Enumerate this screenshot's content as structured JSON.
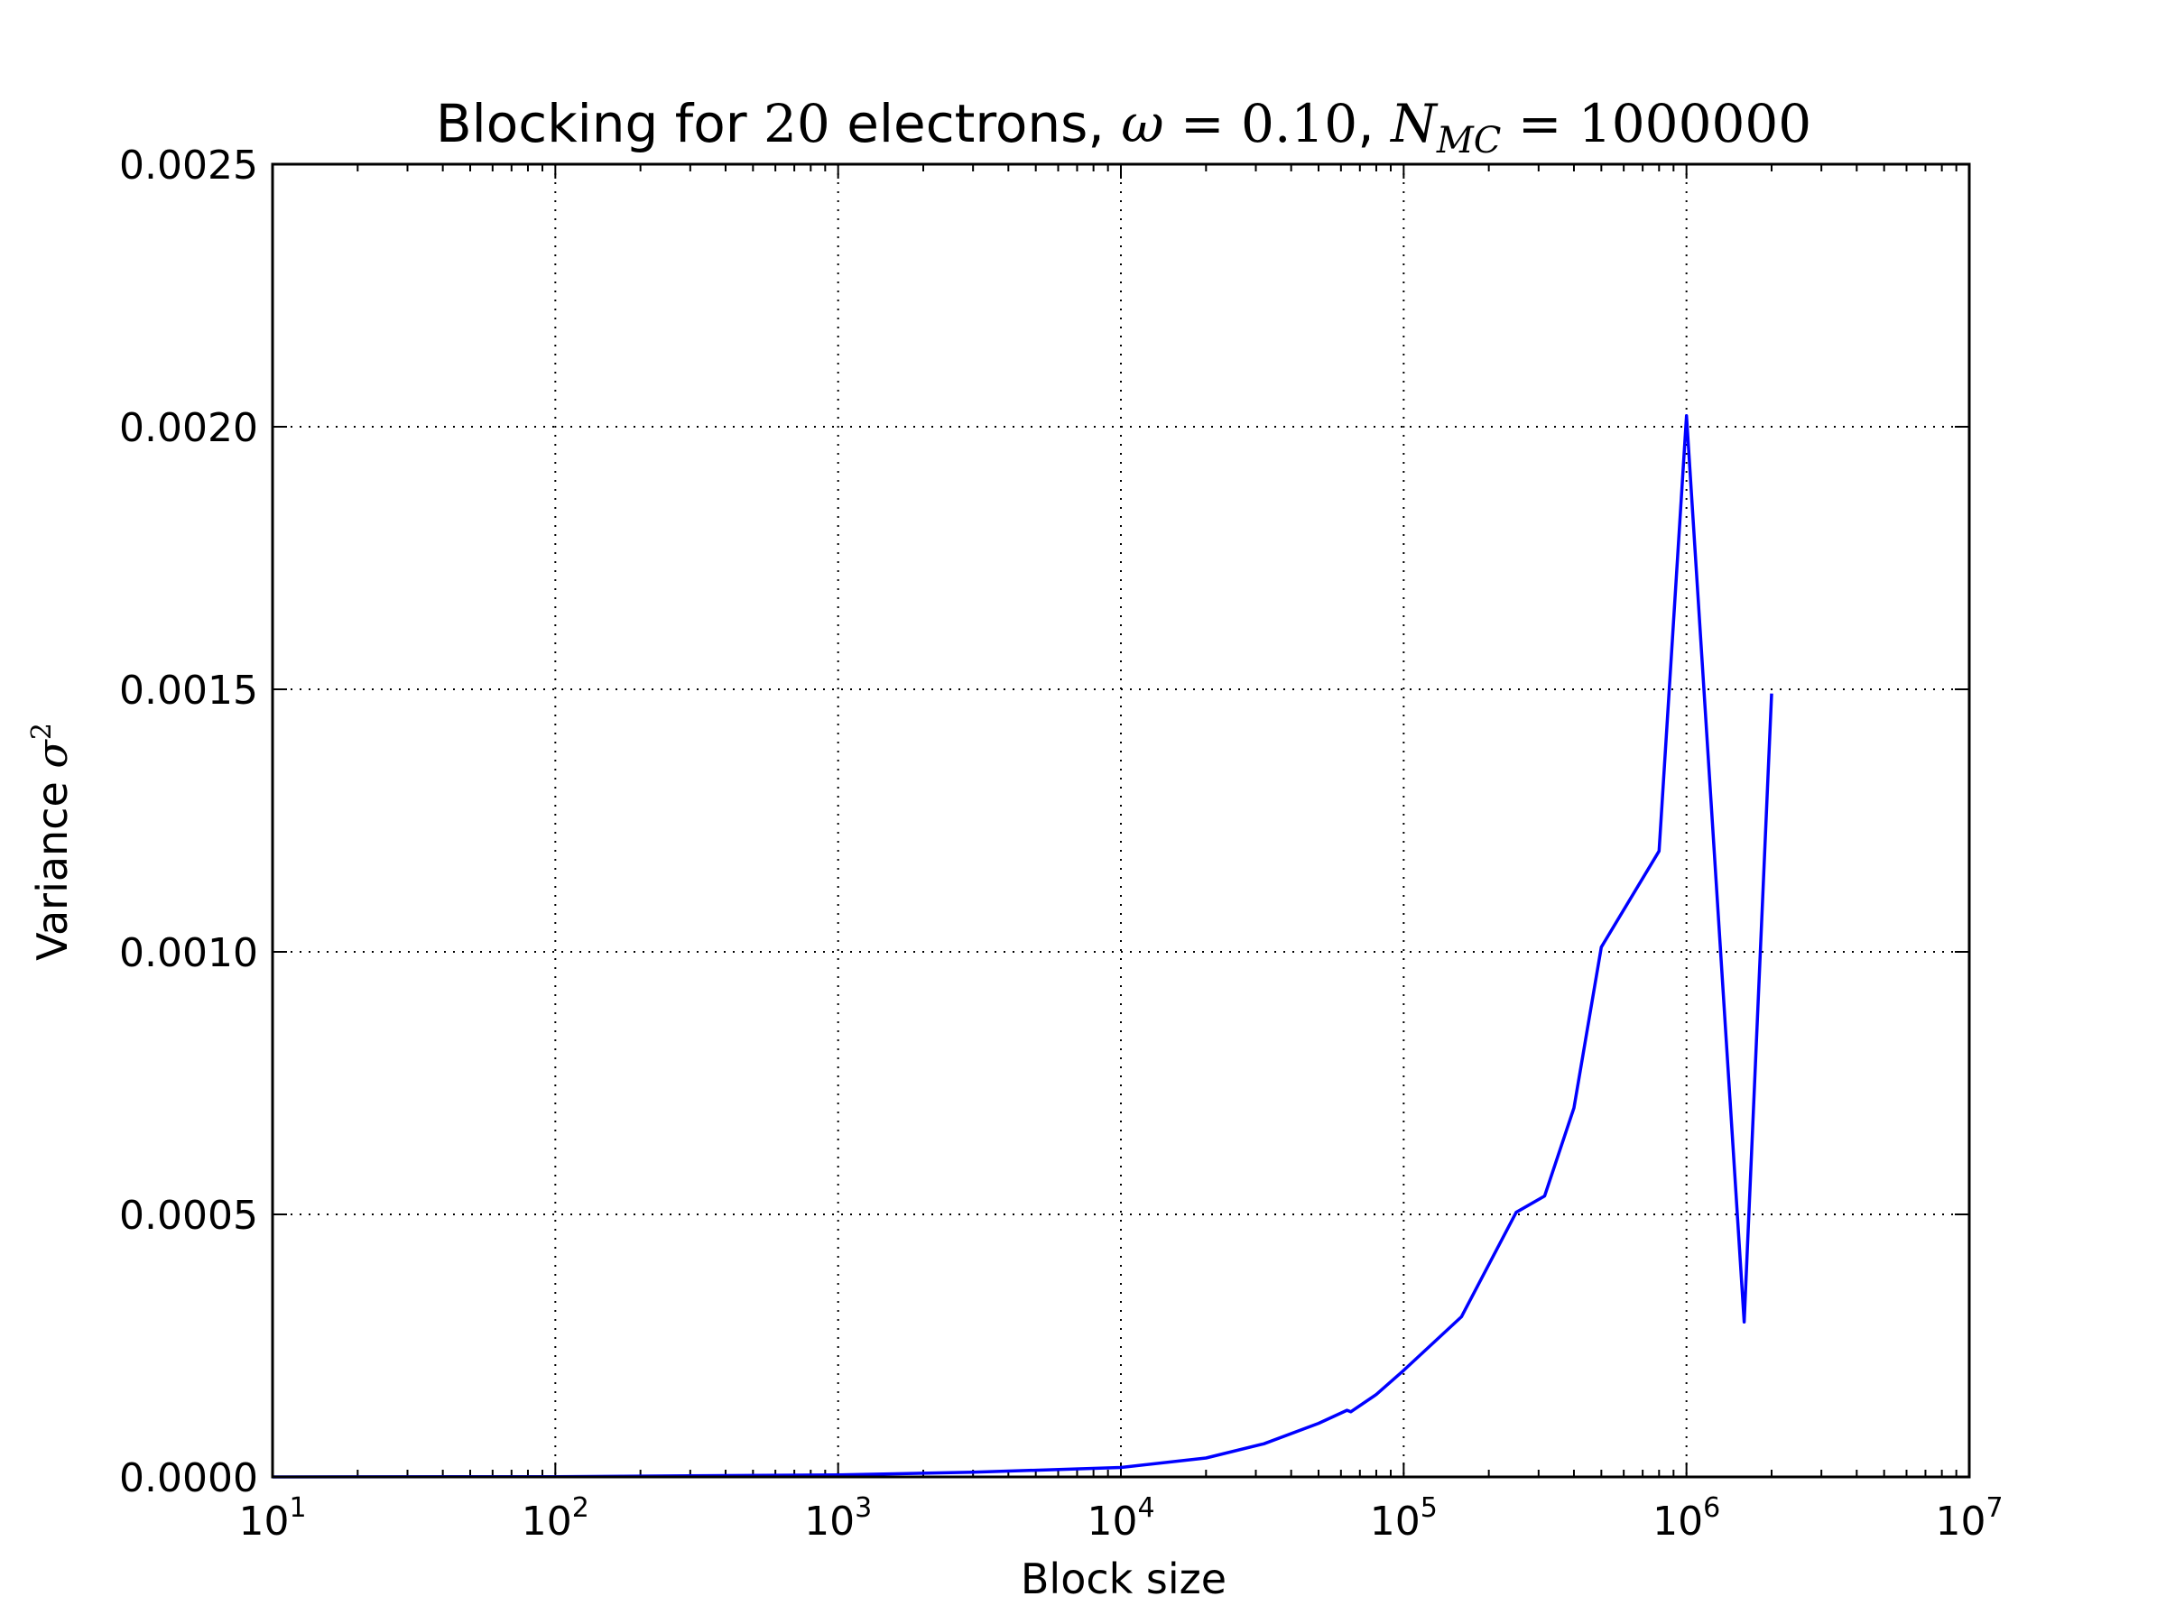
{
  "chart_data": {
    "type": "line",
    "title": {
      "prefix": "Blocking for ",
      "n_electrons": "20",
      "middle": " electrons, ",
      "omega_symbol": "ω",
      "omega_value": " = 0.10",
      "separator": ", ",
      "n_symbol": "N",
      "n_subscript": "MC",
      "n_value": " = 1000000"
    },
    "xlabel": "Block size",
    "ylabel": "Variance",
    "ylabel_symbol": "σ",
    "ylabel_exponent": "2",
    "xscale": "log",
    "xlim": [
      10,
      10000000
    ],
    "ylim": [
      0.0,
      0.0025
    ],
    "x_ticks": [
      {
        "base": "10",
        "exp": "1",
        "value": 10
      },
      {
        "base": "10",
        "exp": "2",
        "value": 100
      },
      {
        "base": "10",
        "exp": "3",
        "value": 1000
      },
      {
        "base": "10",
        "exp": "4",
        "value": 10000
      },
      {
        "base": "10",
        "exp": "5",
        "value": 100000
      },
      {
        "base": "10",
        "exp": "6",
        "value": 1000000
      },
      {
        "base": "10",
        "exp": "7",
        "value": 10000000
      }
    ],
    "y_ticks": [
      {
        "label": "0.0000",
        "value": 0.0
      },
      {
        "label": "0.0005",
        "value": 0.0005
      },
      {
        "label": "0.0010",
        "value": 0.001
      },
      {
        "label": "0.0015",
        "value": 0.0015
      },
      {
        "label": "0.0020",
        "value": 0.002
      },
      {
        "label": "0.0025",
        "value": 0.0025
      }
    ],
    "grid": true,
    "series": [
      {
        "color": "#0000ff",
        "x": [
          10,
          100,
          1000,
          3000,
          10000,
          20000,
          32000,
          50000,
          63000,
          65000,
          80000,
          100000,
          160000,
          250000,
          315000,
          400000,
          500000,
          800000,
          1000000,
          1600000,
          2000000
        ],
        "y": [
          0.0,
          5e-07,
          4e-06,
          9e-06,
          1.8e-05,
          3.6e-05,
          6.3e-05,
          0.000102,
          0.000127,
          0.000124,
          0.000157,
          0.000203,
          0.000305,
          0.000504,
          0.000535,
          0.000703,
          0.001009,
          0.001192,
          0.002021,
          0.000295,
          0.001492
        ]
      }
    ]
  }
}
